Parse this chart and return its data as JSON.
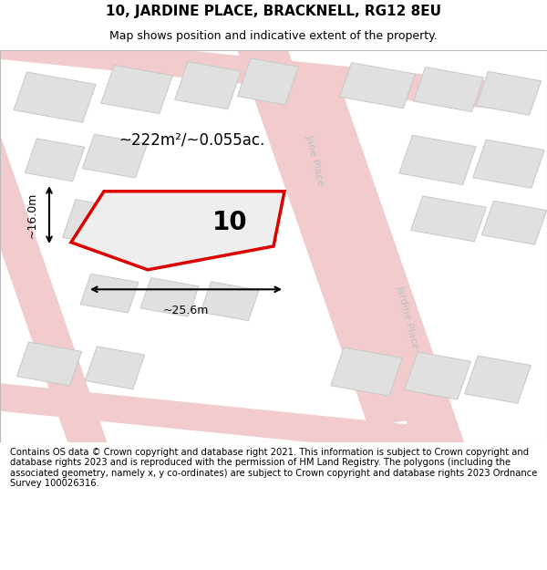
{
  "title": "10, JARDINE PLACE, BRACKNELL, RG12 8EU",
  "subtitle": "Map shows position and indicative extent of the property.",
  "footer": "Contains OS data © Crown copyright and database right 2021. This information is subject to Crown copyright and database rights 2023 and is reproduced with the permission of HM Land Registry. The polygons (including the associated geometry, namely x, y co-ordinates) are subject to Crown copyright and database rights 2023 Ordnance Survey 100026316.",
  "map_bg": "#f9f9f9",
  "road_color": "#f2cccc",
  "road_edge_color": "#e8a0a0",
  "building_fill": "#e0e0e0",
  "building_edge": "#c8c8c8",
  "prop_fill": "#eeeeee",
  "prop_edge": "#dd0000",
  "road_label_color": "#c0c0c0",
  "area_label": "~222m²/~0.055ac.",
  "property_label": "10",
  "dim_width": "~25.6m",
  "dim_height": "~16.0m",
  "street_label_upper": "Jane Place",
  "street_label_lower": "Jardine Place"
}
